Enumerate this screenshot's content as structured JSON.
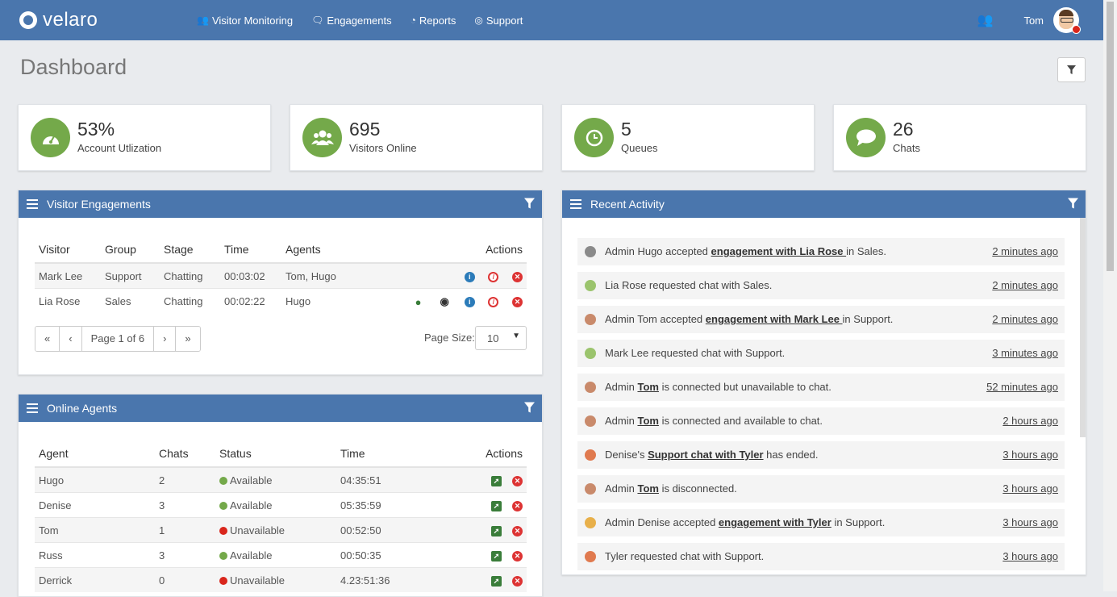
{
  "nav": {
    "brand": "velaro",
    "links": [
      {
        "label": "Visitor Monitoring",
        "icon": "users-icon"
      },
      {
        "label": "Engagements",
        "icon": "chat-bubble-icon"
      },
      {
        "label": "Reports",
        "icon": "pie-chart-icon"
      },
      {
        "label": "Support",
        "icon": "lifebuoy-icon"
      }
    ],
    "user_name": "Tom"
  },
  "page_title": "Dashboard",
  "stats": [
    {
      "value": "53%",
      "label": "Account Utlization",
      "icon": "gauge-icon"
    },
    {
      "value": "695",
      "label": "Visitors Online",
      "icon": "users-icon"
    },
    {
      "value": "5",
      "label": "Queues",
      "icon": "clock-icon"
    },
    {
      "value": "26",
      "label": "Chats",
      "icon": "chat-bubble-icon"
    }
  ],
  "visitor_engagements": {
    "title": "Visitor Engagements",
    "headers": [
      "Visitor",
      "Group",
      "Stage",
      "Time",
      "Agents",
      "Actions"
    ],
    "rows": [
      {
        "visitor": "Mark Lee",
        "group": "Support",
        "stage": "Chatting",
        "time": "00:03:02",
        "agents": "Tom, Hugo"
      },
      {
        "visitor": "Lia Rose",
        "group": "Sales",
        "stage": "Chatting",
        "time": "00:02:22",
        "agents": "Hugo"
      }
    ],
    "pager": {
      "first": "«",
      "prev": "‹",
      "page": "Page 1 of 6",
      "next": "›",
      "last": "»"
    },
    "page_size_label": "Page Size:",
    "page_size": "10"
  },
  "online_agents": {
    "title": "Online Agents",
    "headers": [
      "Agent",
      "Chats",
      "Status",
      "Time",
      "Actions"
    ],
    "rows": [
      {
        "agent": "Hugo",
        "chats": "2",
        "status": "Available",
        "color": "#74a94a",
        "time": "04:35:51"
      },
      {
        "agent": "Denise",
        "chats": "3",
        "status": "Available",
        "color": "#74a94a",
        "time": "05:35:59"
      },
      {
        "agent": "Tom",
        "chats": "1",
        "status": "Unavailable",
        "color": "#d9261c",
        "time": "00:52:50"
      },
      {
        "agent": "Russ",
        "chats": "3",
        "status": "Available",
        "color": "#74a94a",
        "time": "00:50:35"
      },
      {
        "agent": "Derrick",
        "chats": "0",
        "status": "Unavailable",
        "color": "#d9261c",
        "time": "4.23:51:36"
      }
    ]
  },
  "recent_activity": {
    "title": "Recent Activity",
    "items": [
      {
        "pre": "Admin Hugo accepted ",
        "link": "engagement with Lia Rose ",
        "post": " in Sales.",
        "time": "2 minutes ago",
        "avatar": "#8a8a8a"
      },
      {
        "pre": "Lia Rose requested chat with Sales.",
        "link": "",
        "post": "",
        "time": "2 minutes ago",
        "avatar": "#9bc46d"
      },
      {
        "pre": "Admin Tom accepted ",
        "link": "engagement with Mark Lee ",
        "post": " in Support.",
        "time": "2 minutes ago",
        "avatar": "#c98a6b"
      },
      {
        "pre": "Mark Lee requested chat with Support.",
        "link": "",
        "post": "",
        "time": "3 minutes ago",
        "avatar": "#9bc46d"
      },
      {
        "pre": "Admin ",
        "link": "Tom",
        "post": " is connected but unavailable to chat.",
        "time": "52 minutes ago",
        "avatar": "#c98a6b"
      },
      {
        "pre": "Admin ",
        "link": "Tom",
        "post": " is connected and available to chat.",
        "time": "2 hours ago",
        "avatar": "#c98a6b"
      },
      {
        "pre": "Denise's ",
        "link": "Support chat with Tyler",
        "post": " has ended.",
        "time": "3 hours ago",
        "avatar": "#e07a4f"
      },
      {
        "pre": "Admin ",
        "link": "Tom",
        "post": " is disconnected.",
        "time": "3 hours ago",
        "avatar": "#c98a6b"
      },
      {
        "pre": "Admin Denise accepted ",
        "link": "engagement with Tyler",
        "post": " in Support.",
        "time": "3 hours ago",
        "avatar": "#e8b04a"
      },
      {
        "pre": "Tyler requested chat with Support.",
        "link": "",
        "post": "",
        "time": "3 hours ago",
        "avatar": "#e07a4f"
      }
    ]
  }
}
